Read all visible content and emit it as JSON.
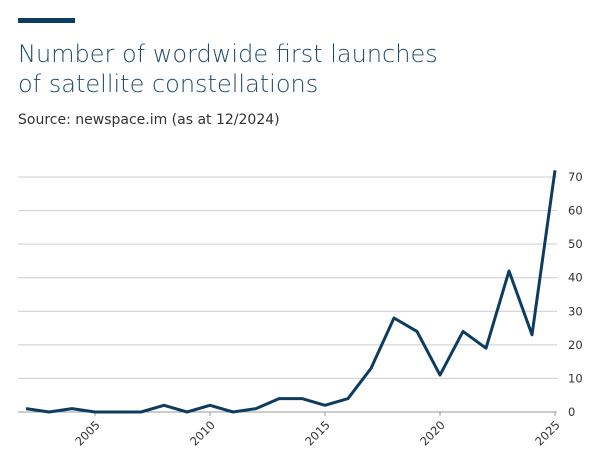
{
  "chart_data": {
    "type": "line",
    "title": [
      "Number of wordwide first launches",
      "of satellite constellations"
    ],
    "subtitle": "Source: newspace.im (as at 12/2024)",
    "x": [
      2002,
      2003,
      2004,
      2005,
      2006,
      2007,
      2008,
      2009,
      2010,
      2011,
      2012,
      2013,
      2014,
      2015,
      2016,
      2017,
      2018,
      2019,
      2020,
      2021,
      2022,
      2023,
      2024,
      2025
    ],
    "series": [
      {
        "color": "#0d3c61",
        "values": [
          1,
          0,
          1,
          0,
          0,
          0,
          2,
          0,
          2,
          0,
          1,
          4,
          4,
          2,
          4,
          13,
          28,
          24,
          11,
          24,
          19,
          42,
          23,
          72
        ]
      }
    ],
    "xlim": [
      2002,
      2025
    ],
    "xticks": [
      2005,
      2010,
      2015,
      2020,
      2025
    ],
    "ylim": [
      0,
      70
    ],
    "yticks": [
      0,
      10,
      20,
      30,
      40,
      50,
      60,
      70
    ],
    "grid": true
  }
}
